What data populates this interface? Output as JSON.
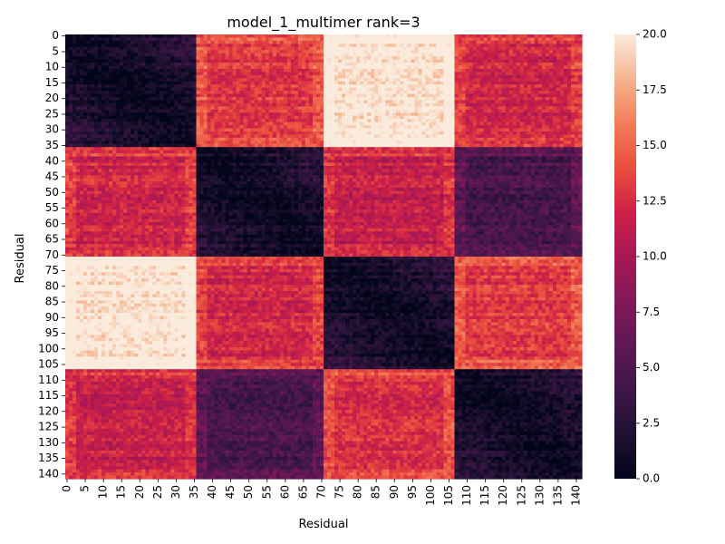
{
  "chart_data": {
    "type": "heatmap",
    "title": "model_1_multimer rank=3",
    "xlabel": "Residual",
    "ylabel": "Residual",
    "n": 142,
    "chain_break": 71,
    "x_ticks": [
      0,
      5,
      10,
      15,
      20,
      25,
      30,
      35,
      40,
      45,
      50,
      55,
      60,
      65,
      70,
      75,
      80,
      85,
      90,
      95,
      100,
      105,
      110,
      115,
      120,
      125,
      130,
      135,
      140
    ],
    "x_tick_step_note": "",
    "y_ticks": [
      0,
      5,
      10,
      15,
      20,
      25,
      30,
      35,
      40,
      45,
      50,
      55,
      60,
      65,
      70,
      75,
      80,
      85,
      90,
      95,
      100,
      105,
      110,
      115,
      120,
      125,
      130,
      135,
      140
    ],
    "colorbar": {
      "min": 0.0,
      "max": 20.0,
      "ticks": [
        "0.0",
        "2.5",
        "5.0",
        "7.5",
        "10.0",
        "12.5",
        "15.0",
        "17.5",
        "20.0"
      ],
      "colormap": "rocket"
    },
    "domains": [
      [
        0,
        35
      ],
      [
        36,
        70
      ],
      [
        71,
        106
      ],
      [
        107,
        141
      ]
    ],
    "domain_pair_mean_error": [
      [
        2.5,
        13.0,
        20.0,
        12.0
      ],
      [
        12.0,
        3.0,
        11.5,
        4.5
      ],
      [
        20.0,
        12.0,
        2.5,
        13.0
      ],
      [
        11.5,
        4.5,
        12.5,
        3.0
      ]
    ],
    "colors": {
      "low": "#03051a",
      "high": "#faebdd"
    }
  }
}
